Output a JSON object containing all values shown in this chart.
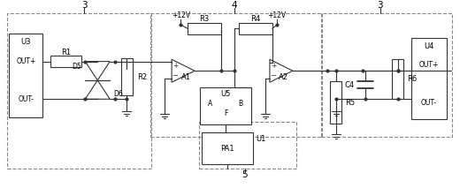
{
  "bg_color": "#ffffff",
  "line_color": "#333333",
  "text_color": "#000000",
  "dashed_color": "#888888",
  "figsize": [
    5.2,
    2.13
  ],
  "dpi": 100,
  "labels": {
    "num3_left": "3",
    "num4": "4",
    "num3_right": "3",
    "num5": "5",
    "U3": "U3",
    "OUT_plus_left": "OUT+",
    "OUT_minus_left": "OUT-",
    "R1": "R1",
    "D5": "D5",
    "D6": "D6",
    "R2": "R2",
    "A1": "A1",
    "plus12V_left": "+12V",
    "R3": "R3",
    "U5": "U5",
    "A_label": "A",
    "B_label": "B",
    "F_label": "F",
    "PA1": "PA1",
    "U1": "U1",
    "R4": "R4",
    "plus12V_right": "+12V",
    "A2": "A2",
    "R5": "R5",
    "C4": "C4",
    "R6": "R6",
    "U4": "U4",
    "OUT_plus_right": "OUT+",
    "OUT_minus_right": "OUT-"
  }
}
